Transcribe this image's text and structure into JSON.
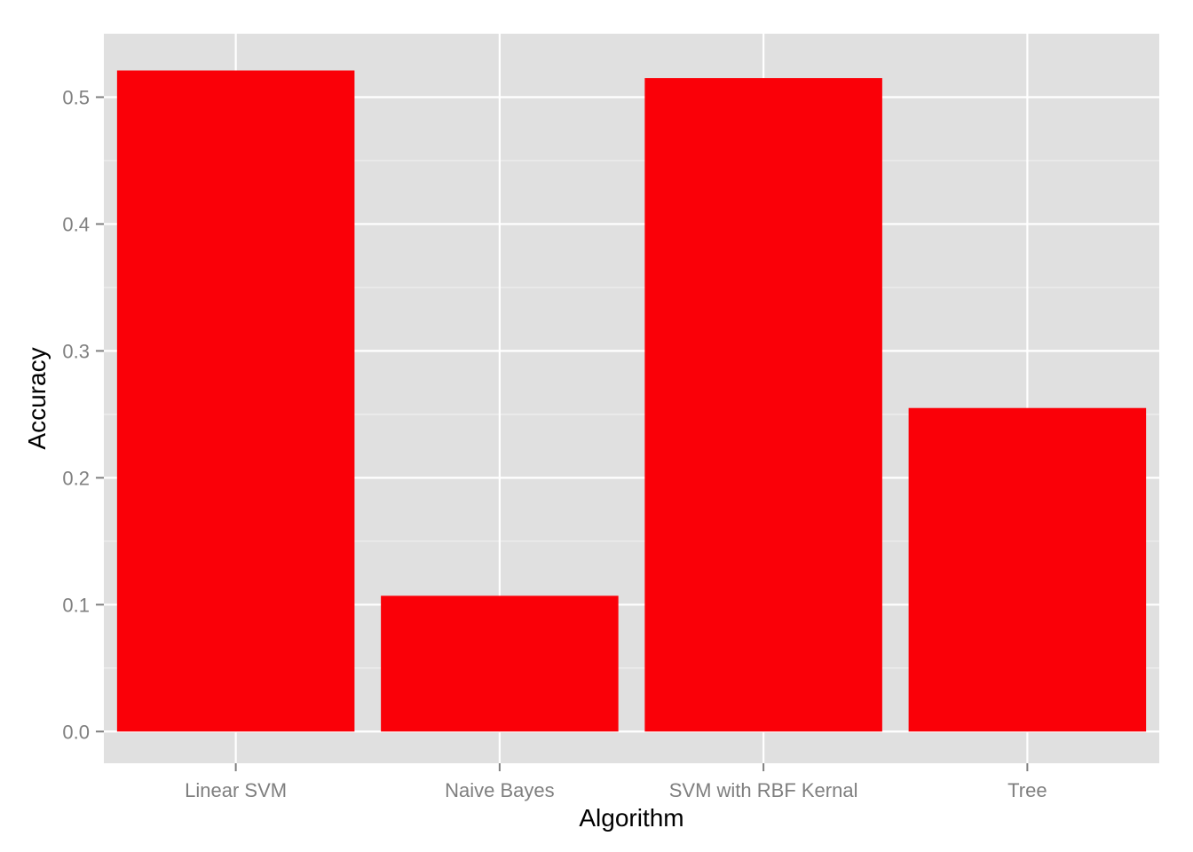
{
  "chart_data": {
    "type": "bar",
    "title": "",
    "xlabel": "Algorithm",
    "ylabel": "Accuracy",
    "categories": [
      "Linear SVM",
      "Naive Bayes",
      "SVM with RBF Kernal",
      "Tree"
    ],
    "values": [
      0.521,
      0.107,
      0.515,
      0.255
    ],
    "ylim": [
      -0.025,
      0.55
    ],
    "yticks": [
      0.0,
      0.1,
      0.2,
      0.3,
      0.4,
      0.5
    ],
    "ytick_labels": [
      "0.0",
      "0.1",
      "0.2",
      "0.3",
      "0.4",
      "0.5"
    ],
    "grid": true,
    "colors": {
      "bar": "#fa0008",
      "panel": "#e0e0e0",
      "gridline": "#ffffff"
    }
  }
}
